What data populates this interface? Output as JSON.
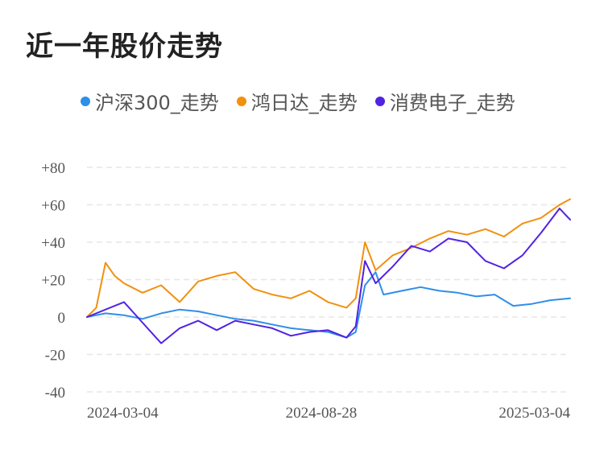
{
  "chart_data": {
    "type": "line",
    "title": "近一年股价走势",
    "ylim": [
      -40,
      80
    ],
    "y_ticks": [
      "+80",
      "+60",
      "+40",
      "+20",
      "0",
      "-20",
      "-40"
    ],
    "y_tick_values": [
      80,
      60,
      40,
      20,
      0,
      -20,
      -40
    ],
    "x_tick_labels": [
      "2024-03-04",
      "2024-08-28",
      "2025-03-04"
    ],
    "x_range": [
      "2024-03-04",
      "2025-03-04"
    ],
    "grid": true,
    "legend_position": "top",
    "series": [
      {
        "name": "沪深300_走势",
        "color": "#2f8fe8",
        "values": [
          [
            "2024-03-04",
            0
          ],
          [
            "2024-03-18",
            2
          ],
          [
            "2024-04-01",
            1
          ],
          [
            "2024-04-15",
            -1
          ],
          [
            "2024-04-29",
            2
          ],
          [
            "2024-05-13",
            4
          ],
          [
            "2024-05-27",
            3
          ],
          [
            "2024-06-10",
            1
          ],
          [
            "2024-06-24",
            -1
          ],
          [
            "2024-07-08",
            -2
          ],
          [
            "2024-07-22",
            -4
          ],
          [
            "2024-08-05",
            -6
          ],
          [
            "2024-08-19",
            -7
          ],
          [
            "2024-09-02",
            -8
          ],
          [
            "2024-09-16",
            -11
          ],
          [
            "2024-09-23",
            -8
          ],
          [
            "2024-09-30",
            17
          ],
          [
            "2024-10-08",
            24
          ],
          [
            "2024-10-14",
            12
          ],
          [
            "2024-10-28",
            14
          ],
          [
            "2024-11-11",
            16
          ],
          [
            "2024-11-25",
            14
          ],
          [
            "2024-12-09",
            13
          ],
          [
            "2024-12-23",
            11
          ],
          [
            "2025-01-06",
            12
          ],
          [
            "2025-01-20",
            6
          ],
          [
            "2025-02-03",
            7
          ],
          [
            "2025-02-17",
            9
          ],
          [
            "2025-03-04",
            10
          ]
        ]
      },
      {
        "name": "鸿日达_走势",
        "color": "#f2900f",
        "values": [
          [
            "2024-03-04",
            0
          ],
          [
            "2024-03-11",
            5
          ],
          [
            "2024-03-18",
            29
          ],
          [
            "2024-03-25",
            22
          ],
          [
            "2024-04-01",
            18
          ],
          [
            "2024-04-15",
            13
          ],
          [
            "2024-04-29",
            17
          ],
          [
            "2024-05-13",
            8
          ],
          [
            "2024-05-27",
            19
          ],
          [
            "2024-06-10",
            22
          ],
          [
            "2024-06-24",
            24
          ],
          [
            "2024-07-08",
            15
          ],
          [
            "2024-07-22",
            12
          ],
          [
            "2024-08-05",
            10
          ],
          [
            "2024-08-19",
            14
          ],
          [
            "2024-09-02",
            8
          ],
          [
            "2024-09-16",
            5
          ],
          [
            "2024-09-23",
            10
          ],
          [
            "2024-09-30",
            40
          ],
          [
            "2024-10-08",
            25
          ],
          [
            "2024-10-21",
            33
          ],
          [
            "2024-11-04",
            37
          ],
          [
            "2024-11-18",
            42
          ],
          [
            "2024-12-02",
            46
          ],
          [
            "2024-12-16",
            44
          ],
          [
            "2024-12-30",
            47
          ],
          [
            "2025-01-13",
            43
          ],
          [
            "2025-01-27",
            50
          ],
          [
            "2025-02-10",
            53
          ],
          [
            "2025-02-24",
            60
          ],
          [
            "2025-03-04",
            63
          ]
        ]
      },
      {
        "name": "消费电子_走势",
        "color": "#5223e2",
        "values": [
          [
            "2024-03-04",
            0
          ],
          [
            "2024-03-18",
            4
          ],
          [
            "2024-04-01",
            8
          ],
          [
            "2024-04-15",
            -3
          ],
          [
            "2024-04-29",
            -14
          ],
          [
            "2024-05-13",
            -6
          ],
          [
            "2024-05-27",
            -2
          ],
          [
            "2024-06-10",
            -7
          ],
          [
            "2024-06-24",
            -2
          ],
          [
            "2024-07-08",
            -4
          ],
          [
            "2024-07-22",
            -6
          ],
          [
            "2024-08-05",
            -10
          ],
          [
            "2024-08-19",
            -8
          ],
          [
            "2024-09-02",
            -7
          ],
          [
            "2024-09-16",
            -11
          ],
          [
            "2024-09-23",
            -5
          ],
          [
            "2024-09-30",
            30
          ],
          [
            "2024-10-08",
            18
          ],
          [
            "2024-10-21",
            27
          ],
          [
            "2024-11-04",
            38
          ],
          [
            "2024-11-18",
            35
          ],
          [
            "2024-12-02",
            42
          ],
          [
            "2024-12-16",
            40
          ],
          [
            "2024-12-30",
            30
          ],
          [
            "2025-01-13",
            26
          ],
          [
            "2025-01-27",
            33
          ],
          [
            "2025-02-10",
            45
          ],
          [
            "2025-02-24",
            58
          ],
          [
            "2025-03-04",
            52
          ]
        ]
      }
    ]
  }
}
